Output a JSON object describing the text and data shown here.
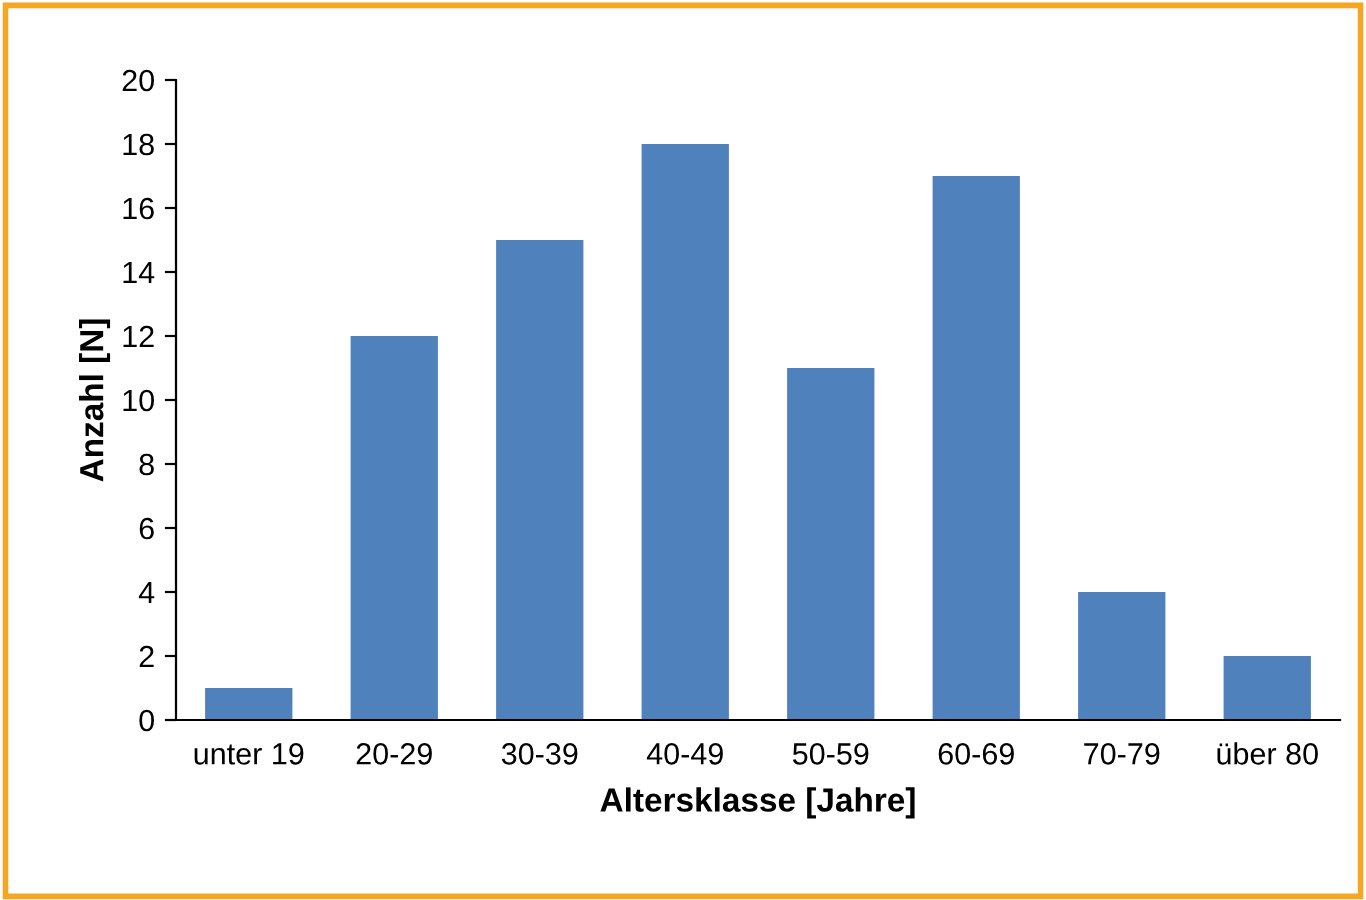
{
  "chart_data": {
    "type": "bar",
    "categories": [
      "unter 19",
      "20-29",
      "30-39",
      "40-49",
      "50-59",
      "60-69",
      "70-79",
      "über 80"
    ],
    "values": [
      1,
      12,
      15,
      18,
      11,
      17,
      4,
      2
    ],
    "color": "#4f81bd",
    "xlabel": "Altersklasse [Jahre]",
    "ylabel": "Anzahl [N]",
    "ylim": [
      0,
      20
    ],
    "yticks": [
      0,
      2,
      4,
      6,
      8,
      10,
      12,
      14,
      16,
      18,
      20
    ],
    "grid": false
  }
}
